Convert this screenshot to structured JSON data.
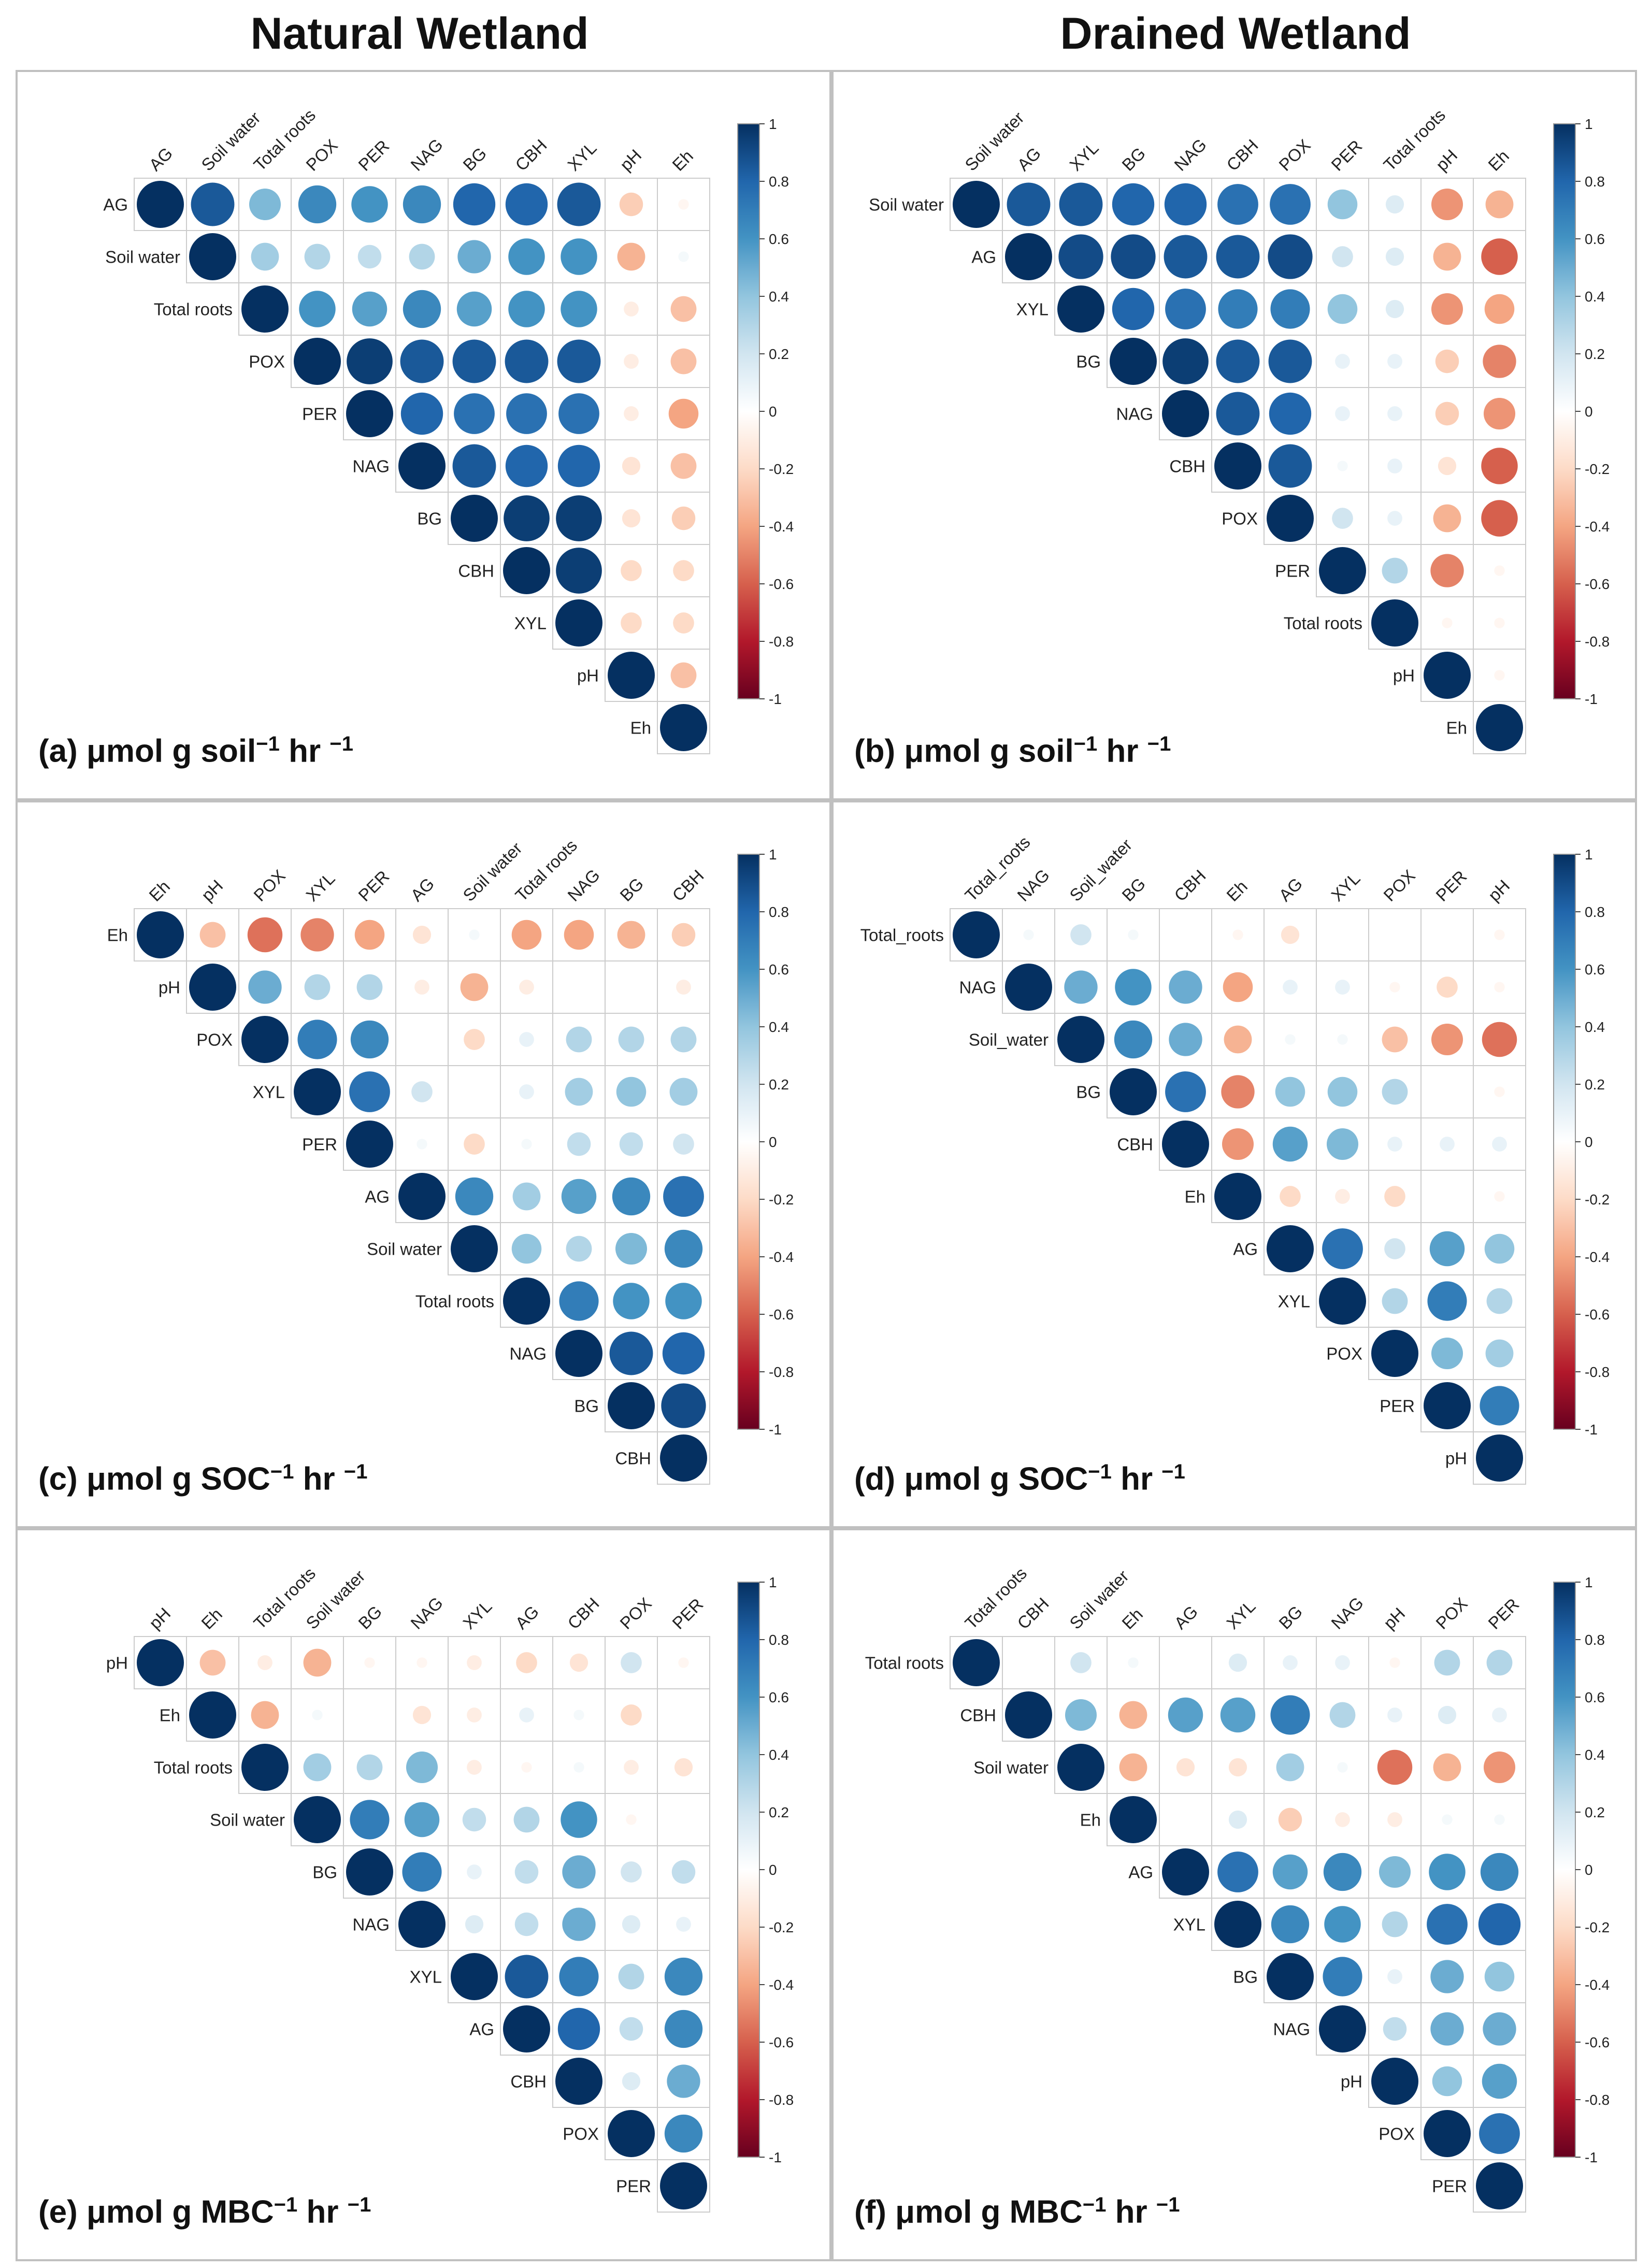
{
  "titles": {
    "left": "Natural Wetland",
    "right": "Drained Wetland"
  },
  "colors": {
    "strong_positive": "#053061",
    "strong_negative": "#67001f",
    "neutral": "#ffffff",
    "grid": "#cccccc"
  },
  "colorbar_ticks": [
    "1",
    "0.8",
    "0.6",
    "0.4",
    "0.2",
    "0",
    "-0.2",
    "-0.4",
    "-0.6",
    "-0.8",
    "-1"
  ],
  "chart_data": [
    {
      "type": "heatmap",
      "id": "a",
      "caption": {
        "prefix": "(a) μmol g soil",
        "exp1": "−1",
        "mid": " hr ",
        "exp2": "−1"
      },
      "labels": [
        "AG",
        "Soil water",
        "Total roots",
        "POX",
        "PER",
        "NAG",
        "BG",
        "CBH",
        "XYL",
        "pH",
        "Eh"
      ],
      "matrix": [
        [
          1,
          0.85,
          0.45,
          0.65,
          0.6,
          0.65,
          0.8,
          0.8,
          0.85,
          -0.25,
          -0.05
        ],
        [
          null,
          1,
          0.35,
          0.3,
          0.25,
          0.3,
          0.5,
          0.6,
          0.6,
          -0.35,
          0.05
        ],
        [
          null,
          null,
          1,
          0.6,
          0.55,
          0.65,
          0.55,
          0.6,
          0.6,
          -0.1,
          -0.3
        ],
        [
          null,
          null,
          null,
          1,
          0.95,
          0.85,
          0.85,
          0.85,
          0.85,
          -0.1,
          -0.3
        ],
        [
          null,
          null,
          null,
          null,
          1,
          0.8,
          0.75,
          0.75,
          0.75,
          -0.1,
          -0.4
        ],
        [
          null,
          null,
          null,
          null,
          null,
          1,
          0.85,
          0.8,
          0.8,
          -0.15,
          -0.3
        ],
        [
          null,
          null,
          null,
          null,
          null,
          null,
          1,
          0.95,
          0.95,
          -0.15,
          -0.25
        ],
        [
          null,
          null,
          null,
          null,
          null,
          null,
          null,
          1,
          0.95,
          -0.2,
          -0.2
        ],
        [
          null,
          null,
          null,
          null,
          null,
          null,
          null,
          null,
          1,
          -0.2,
          -0.2
        ],
        [
          null,
          null,
          null,
          null,
          null,
          null,
          null,
          null,
          null,
          1,
          -0.3
        ],
        [
          null,
          null,
          null,
          null,
          null,
          null,
          null,
          null,
          null,
          null,
          1
        ]
      ],
      "colorbar": {
        "min": -1,
        "max": 1
      }
    },
    {
      "type": "heatmap",
      "id": "b",
      "caption": {
        "prefix": "(b) μmol g soil",
        "exp1": "−1",
        "mid": " hr ",
        "exp2": "−1"
      },
      "labels": [
        "Soil water",
        "AG",
        "XYL",
        "BG",
        "NAG",
        "CBH",
        "POX",
        "PER",
        "Total roots",
        "pH",
        "Eh"
      ],
      "matrix": [
        [
          1,
          0.85,
          0.85,
          0.8,
          0.8,
          0.75,
          0.75,
          0.4,
          0.15,
          -0.45,
          -0.35
        ],
        [
          null,
          1,
          0.9,
          0.9,
          0.85,
          0.85,
          0.9,
          0.2,
          0.15,
          -0.35,
          -0.6
        ],
        [
          null,
          null,
          1,
          0.8,
          0.75,
          0.7,
          0.7,
          0.4,
          0.15,
          -0.45,
          -0.4
        ],
        [
          null,
          null,
          null,
          1,
          0.95,
          0.85,
          0.85,
          0.1,
          0.1,
          -0.25,
          -0.5
        ],
        [
          null,
          null,
          null,
          null,
          1,
          0.85,
          0.8,
          0.1,
          0.1,
          -0.25,
          -0.45
        ],
        [
          null,
          null,
          null,
          null,
          null,
          1,
          0.85,
          0.05,
          0.1,
          -0.15,
          -0.6
        ],
        [
          null,
          null,
          null,
          null,
          null,
          null,
          1,
          0.2,
          0.1,
          -0.35,
          -0.6
        ],
        [
          null,
          null,
          null,
          null,
          null,
          null,
          null,
          1,
          0.3,
          -0.5,
          -0.05
        ],
        [
          null,
          null,
          null,
          null,
          null,
          null,
          null,
          null,
          1,
          -0.05,
          -0.05
        ],
        [
          null,
          null,
          null,
          null,
          null,
          null,
          null,
          null,
          null,
          1,
          -0.05
        ],
        [
          null,
          null,
          null,
          null,
          null,
          null,
          null,
          null,
          null,
          null,
          1
        ]
      ],
      "colorbar": {
        "min": -1,
        "max": 1
      }
    },
    {
      "type": "heatmap",
      "id": "c",
      "caption": {
        "prefix": "(c) μmol g SOC",
        "exp1": "−1",
        "mid": " hr ",
        "exp2": "−1"
      },
      "labels": [
        "Eh",
        "pH",
        "POX",
        "XYL",
        "PER",
        "AG",
        "Soil water",
        "Total roots",
        "NAG",
        "BG",
        "CBH"
      ],
      "matrix": [
        [
          1,
          -0.3,
          -0.55,
          -0.5,
          -0.4,
          -0.15,
          0.05,
          -0.4,
          -0.4,
          -0.35,
          -0.25
        ],
        [
          null,
          1,
          0.5,
          0.3,
          0.3,
          -0.1,
          -0.35,
          -0.1,
          0.0,
          0.0,
          -0.1
        ],
        [
          null,
          null,
          1,
          0.7,
          0.65,
          0.0,
          -0.2,
          0.1,
          0.3,
          0.3,
          0.3
        ],
        [
          null,
          null,
          null,
          1,
          0.75,
          0.2,
          0.0,
          0.1,
          0.35,
          0.4,
          0.35
        ],
        [
          null,
          null,
          null,
          null,
          1,
          0.05,
          -0.2,
          0.05,
          0.25,
          0.25,
          0.2
        ],
        [
          null,
          null,
          null,
          null,
          null,
          1,
          0.65,
          0.35,
          0.55,
          0.65,
          0.75
        ],
        [
          null,
          null,
          null,
          null,
          null,
          null,
          1,
          0.4,
          0.3,
          0.45,
          0.65
        ],
        [
          null,
          null,
          null,
          null,
          null,
          null,
          null,
          1,
          0.7,
          0.6,
          0.6
        ],
        [
          null,
          null,
          null,
          null,
          null,
          null,
          null,
          null,
          1,
          0.85,
          0.8
        ],
        [
          null,
          null,
          null,
          null,
          null,
          null,
          null,
          null,
          null,
          1,
          0.9
        ],
        [
          null,
          null,
          null,
          null,
          null,
          null,
          null,
          null,
          null,
          null,
          1
        ]
      ],
      "colorbar": {
        "min": -1,
        "max": 1
      }
    },
    {
      "type": "heatmap",
      "id": "d",
      "caption": {
        "prefix": "(d) μmol g SOC",
        "exp1": "−1",
        "mid": " hr ",
        "exp2": "−1"
      },
      "labels": [
        "Total_roots",
        "NAG",
        "Soil_water",
        "BG",
        "CBH",
        "Eh",
        "AG",
        "XYL",
        "POX",
        "PER",
        "pH"
      ],
      "matrix": [
        [
          1,
          0.05,
          0.2,
          0.05,
          0.0,
          -0.05,
          -0.15,
          0.0,
          0.0,
          0.0,
          -0.05
        ],
        [
          null,
          1,
          0.5,
          0.6,
          0.5,
          -0.4,
          0.1,
          0.1,
          -0.05,
          -0.2,
          -0.05
        ],
        [
          null,
          null,
          1,
          0.65,
          0.5,
          -0.35,
          0.05,
          0.05,
          -0.3,
          -0.45,
          -0.55
        ],
        [
          null,
          null,
          null,
          1,
          0.75,
          -0.5,
          0.4,
          0.4,
          0.3,
          0.0,
          -0.05
        ],
        [
          null,
          null,
          null,
          null,
          1,
          -0.45,
          0.55,
          0.45,
          0.1,
          0.1,
          0.1
        ],
        [
          null,
          null,
          null,
          null,
          null,
          1,
          -0.2,
          -0.1,
          -0.2,
          0.0,
          -0.05
        ],
        [
          null,
          null,
          null,
          null,
          null,
          null,
          1,
          0.75,
          0.2,
          0.55,
          0.4
        ],
        [
          null,
          null,
          null,
          null,
          null,
          null,
          null,
          1,
          0.3,
          0.7,
          0.3
        ],
        [
          null,
          null,
          null,
          null,
          null,
          null,
          null,
          null,
          1,
          0.45,
          0.35
        ],
        [
          null,
          null,
          null,
          null,
          null,
          null,
          null,
          null,
          null,
          1,
          0.7
        ],
        [
          null,
          null,
          null,
          null,
          null,
          null,
          null,
          null,
          null,
          null,
          1
        ]
      ],
      "colorbar": {
        "min": -1,
        "max": 1
      }
    },
    {
      "type": "heatmap",
      "id": "e",
      "caption": {
        "prefix": "(e) μmol g MBC",
        "exp1": "−1",
        "mid": " hr ",
        "exp2": "−1"
      },
      "labels": [
        "pH",
        "Eh",
        "Total roots",
        "Soil water",
        "BG",
        "NAG",
        "XYL",
        "AG",
        "CBH",
        "POX",
        "PER"
      ],
      "matrix": [
        [
          1,
          -0.3,
          -0.1,
          -0.35,
          -0.05,
          -0.05,
          -0.1,
          -0.2,
          -0.15,
          0.2,
          -0.05
        ],
        [
          null,
          1,
          -0.35,
          0.05,
          0.0,
          -0.15,
          -0.1,
          0.1,
          0.05,
          -0.2,
          0.0
        ],
        [
          null,
          null,
          1,
          0.35,
          0.3,
          0.45,
          -0.1,
          -0.05,
          0.05,
          -0.1,
          -0.15
        ],
        [
          null,
          null,
          null,
          1,
          0.7,
          0.55,
          0.25,
          0.3,
          0.6,
          -0.05,
          0.0
        ],
        [
          null,
          null,
          null,
          null,
          1,
          0.7,
          0.1,
          0.25,
          0.5,
          0.2,
          0.25
        ],
        [
          null,
          null,
          null,
          null,
          null,
          1,
          0.15,
          0.25,
          0.5,
          0.15,
          0.1
        ],
        [
          null,
          null,
          null,
          null,
          null,
          null,
          1,
          0.85,
          0.7,
          0.3,
          0.65
        ],
        [
          null,
          null,
          null,
          null,
          null,
          null,
          null,
          1,
          0.8,
          0.25,
          0.65
        ],
        [
          null,
          null,
          null,
          null,
          null,
          null,
          null,
          null,
          1,
          0.15,
          0.5
        ],
        [
          null,
          null,
          null,
          null,
          null,
          null,
          null,
          null,
          null,
          1,
          0.65
        ],
        [
          null,
          null,
          null,
          null,
          null,
          null,
          null,
          null,
          null,
          null,
          1
        ]
      ],
      "colorbar": {
        "min": -1,
        "max": 1
      }
    },
    {
      "type": "heatmap",
      "id": "f",
      "caption": {
        "prefix": "(f) μmol g MBC",
        "exp1": "−1",
        "mid": " hr ",
        "exp2": "−1"
      },
      "labels": [
        "Total roots",
        "CBH",
        "Soil water",
        "Eh",
        "AG",
        "XYL",
        "BG",
        "NAG",
        "pH",
        "POX",
        "PER"
      ],
      "matrix": [
        [
          1,
          0.0,
          0.2,
          0.05,
          0.0,
          0.15,
          0.1,
          0.1,
          -0.05,
          0.3,
          0.3
        ],
        [
          null,
          1,
          0.45,
          -0.35,
          0.55,
          0.55,
          0.7,
          0.3,
          0.1,
          0.15,
          0.1
        ],
        [
          null,
          null,
          1,
          -0.35,
          -0.15,
          -0.15,
          0.35,
          0.05,
          -0.55,
          -0.35,
          -0.45
        ],
        [
          null,
          null,
          null,
          1,
          0.0,
          0.15,
          -0.25,
          -0.1,
          -0.1,
          0.05,
          0.05
        ],
        [
          null,
          null,
          null,
          null,
          1,
          0.75,
          0.55,
          0.65,
          0.45,
          0.6,
          0.65
        ],
        [
          null,
          null,
          null,
          null,
          null,
          1,
          0.65,
          0.6,
          0.3,
          0.75,
          0.8
        ],
        [
          null,
          null,
          null,
          null,
          null,
          null,
          1,
          0.7,
          0.1,
          0.5,
          0.4
        ],
        [
          null,
          null,
          null,
          null,
          null,
          null,
          null,
          1,
          0.25,
          0.5,
          0.5
        ],
        [
          null,
          null,
          null,
          null,
          null,
          null,
          null,
          null,
          1,
          0.4,
          0.55
        ],
        [
          null,
          null,
          null,
          null,
          null,
          null,
          null,
          null,
          null,
          1,
          0.75
        ],
        [
          null,
          null,
          null,
          null,
          null,
          null,
          null,
          null,
          null,
          null,
          1
        ]
      ],
      "colorbar": {
        "min": -1,
        "max": 1
      }
    }
  ]
}
